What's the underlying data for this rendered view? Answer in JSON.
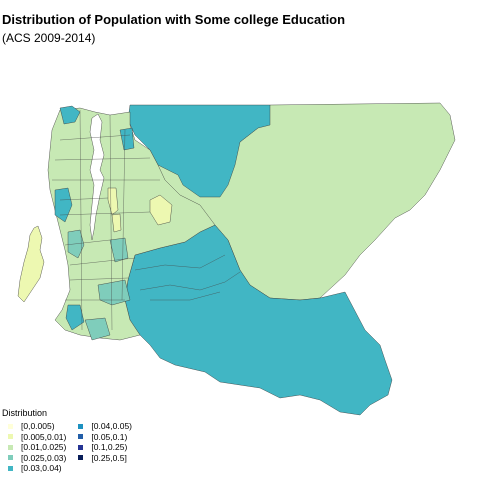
{
  "title": "Distribution of Population with Some college Education",
  "subtitle": "(ACS 2009-2014)",
  "legend": {
    "title": "Distribution",
    "items": [
      {
        "label": "[0,0.005)",
        "color": "#ffffd9"
      },
      {
        "label": "[0.005,0.01)",
        "color": "#edf8b1"
      },
      {
        "label": "[0.01,0.025)",
        "color": "#c7e9b4"
      },
      {
        "label": "[0.025,0.03)",
        "color": "#7fcdbb"
      },
      {
        "label": "[0.03,0.04)",
        "color": "#41b6c4"
      },
      {
        "label": "[0.04,0.05)",
        "color": "#1d91c0"
      },
      {
        "label": "[0.05,0.1)",
        "color": "#225ea8"
      },
      {
        "label": "[0.1,0.25)",
        "color": "#253494"
      },
      {
        "label": "[0.25,0.5]",
        "color": "#081d58"
      }
    ]
  }
}
